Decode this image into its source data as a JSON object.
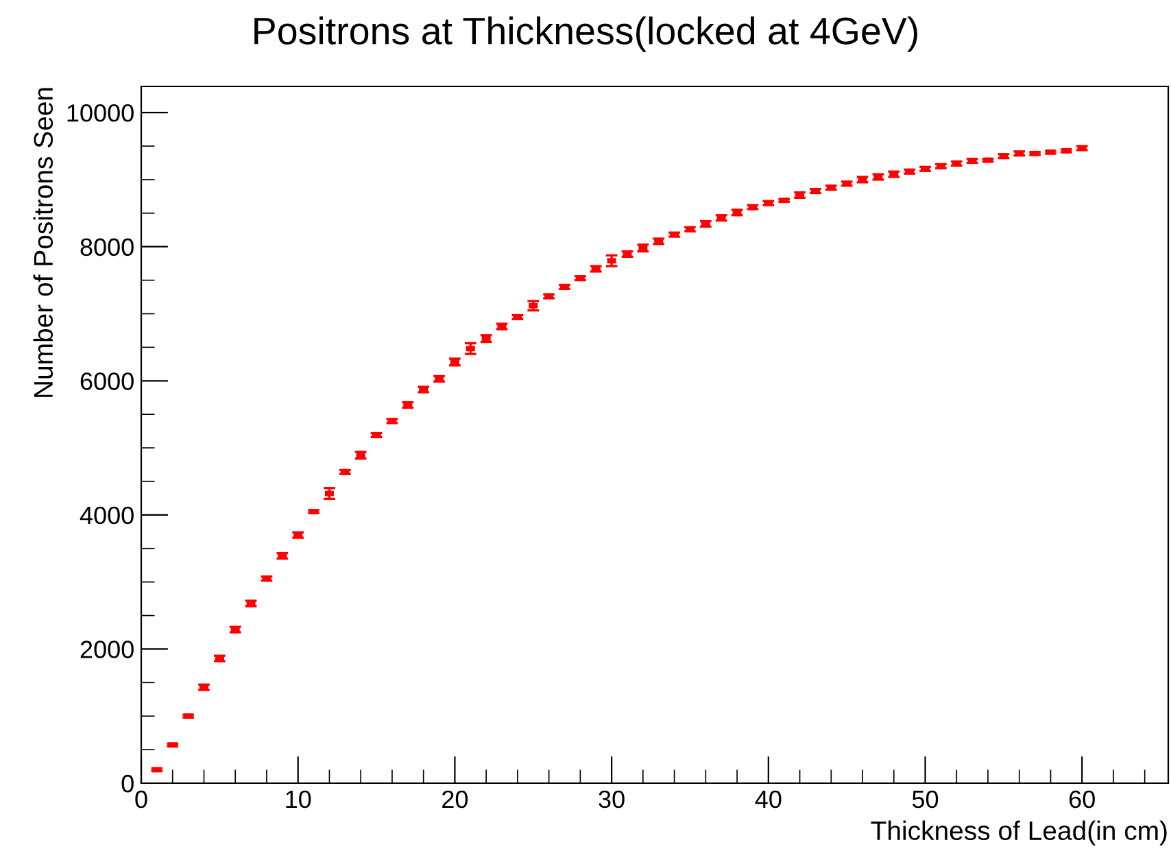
{
  "chart_data": {
    "type": "scatter",
    "title": "Positrons at Thickness(locked at 4GeV)",
    "xlabel": "Thickness of Lead(in cm)",
    "ylabel": "Number of Positrons Seen",
    "x": [
      1,
      2,
      3,
      4,
      5,
      6,
      7,
      8,
      9,
      10,
      11,
      12,
      13,
      14,
      15,
      16,
      17,
      18,
      19,
      20,
      21,
      22,
      23,
      24,
      25,
      26,
      27,
      28,
      29,
      30,
      31,
      32,
      33,
      34,
      35,
      36,
      37,
      38,
      39,
      40,
      41,
      42,
      43,
      44,
      45,
      46,
      47,
      48,
      49,
      50,
      51,
      52,
      53,
      54,
      55,
      56,
      57,
      58,
      59,
      60
    ],
    "series": [
      {
        "color": "#ff0000",
        "values": [
          200,
          570,
          1000,
          1430,
          1860,
          2290,
          2680,
          3050,
          3390,
          3700,
          4050,
          4320,
          4640,
          4890,
          5190,
          5400,
          5640,
          5870,
          6030,
          6280,
          6480,
          6630,
          6810,
          6950,
          7120,
          7260,
          7400,
          7530,
          7670,
          7790,
          7890,
          7980,
          8080,
          8180,
          8260,
          8340,
          8430,
          8510,
          8590,
          8650,
          8690,
          8770,
          8830,
          8880,
          8940,
          9000,
          9040,
          9080,
          9120,
          9160,
          9200,
          9240,
          9280,
          9290,
          9350,
          9390,
          9390,
          9410,
          9430,
          9470
        ],
        "errors": [
          20,
          20,
          20,
          40,
          40,
          40,
          40,
          30,
          40,
          40,
          20,
          80,
          30,
          50,
          30,
          30,
          40,
          40,
          40,
          50,
          80,
          50,
          40,
          30,
          70,
          30,
          30,
          30,
          40,
          80,
          40,
          50,
          40,
          30,
          30,
          40,
          40,
          40,
          30,
          30,
          20,
          40,
          30,
          30,
          30,
          40,
          40,
          40,
          30,
          30,
          30,
          30,
          30,
          20,
          30,
          30,
          20,
          20,
          20,
          30
        ]
      }
    ],
    "xlim": [
      0,
      65.5
    ],
    "ylim": [
      0,
      10390
    ],
    "xticks": [
      0,
      10,
      20,
      30,
      40,
      50,
      60
    ],
    "yticks": [
      0,
      2000,
      4000,
      6000,
      8000,
      10000
    ],
    "grid": false,
    "legend": false
  }
}
